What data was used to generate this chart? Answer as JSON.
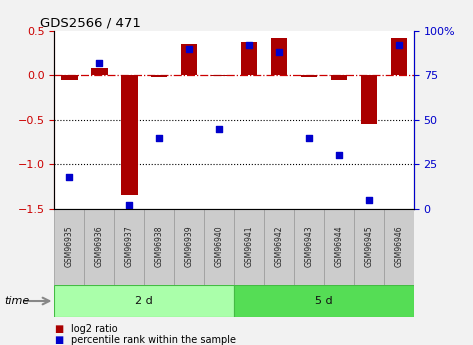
{
  "title": "GDS2566 / 471",
  "samples": [
    "GSM96935",
    "GSM96936",
    "GSM96937",
    "GSM96938",
    "GSM96939",
    "GSM96940",
    "GSM96941",
    "GSM96942",
    "GSM96943",
    "GSM96944",
    "GSM96945",
    "GSM96946"
  ],
  "log2_ratio": [
    -0.05,
    0.08,
    -1.35,
    -0.02,
    0.35,
    -0.01,
    0.38,
    0.42,
    -0.02,
    -0.05,
    -0.55,
    0.42
  ],
  "percentile_rank": [
    18,
    82,
    2,
    40,
    90,
    45,
    92,
    88,
    40,
    30,
    5,
    92
  ],
  "groups": [
    {
      "label": "2 d",
      "start": 0,
      "end": 6,
      "color": "#AAFFAA"
    },
    {
      "label": "5 d",
      "start": 6,
      "end": 12,
      "color": "#55DD55"
    }
  ],
  "bar_color": "#AA0000",
  "point_color": "#0000CC",
  "ylim_left": [
    -1.5,
    0.5
  ],
  "ylim_right": [
    0,
    100
  ],
  "yticks_left": [
    0.5,
    0.0,
    -0.5,
    -1.0,
    -1.5
  ],
  "yticks_right": [
    100,
    75,
    50,
    25,
    0
  ],
  "hlines": [
    0.0,
    -0.5,
    -1.0
  ],
  "hline_styles": [
    "dashdot",
    "dotted",
    "dotted"
  ],
  "legend_items": [
    {
      "color": "#AA0000",
      "label": "log2 ratio"
    },
    {
      "color": "#0000CC",
      "label": "percentile rank within the sample"
    }
  ],
  "time_label": "time",
  "bg_color": "#F2F2F2",
  "plot_bg": "#FFFFFF",
  "tick_label_color_left": "#CC0000",
  "tick_label_color_right": "#0000CC",
  "sample_box_color": "#CCCCCC",
  "sample_box_edge": "#999999",
  "bar_width": 0.55
}
